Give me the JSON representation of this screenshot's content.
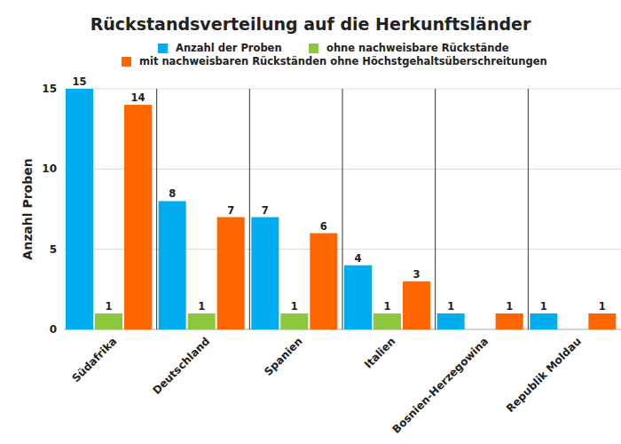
{
  "chart_data": {
    "type": "bar",
    "title": "Rückstandsverteilung auf die Herkunftsländer",
    "y_label": "Anzahl Proben",
    "categories": [
      "Südafrika",
      "Deutschland",
      "Spanien",
      "Italien",
      "Bosnien-Herzegowina",
      "Republik Moldau"
    ],
    "series": [
      {
        "name": "Anzahl der Proben",
        "color": "#00aeef",
        "values": [
          15,
          8,
          7,
          4,
          1,
          1
        ]
      },
      {
        "name": "ohne nachweisbare Rückstände",
        "color": "#8dc63f",
        "values": [
          1,
          1,
          1,
          1,
          null,
          null
        ]
      },
      {
        "name": "mit nachweisbaren Rückständen ohne Höchstgehaltsüberschreitungen",
        "color": "#ff6600",
        "values": [
          14,
          7,
          6,
          3,
          1,
          1
        ]
      }
    ],
    "ylim": [
      0,
      15
    ],
    "yticks": [
      0,
      5,
      10,
      15
    ],
    "grid": true,
    "data_labels": true
  }
}
